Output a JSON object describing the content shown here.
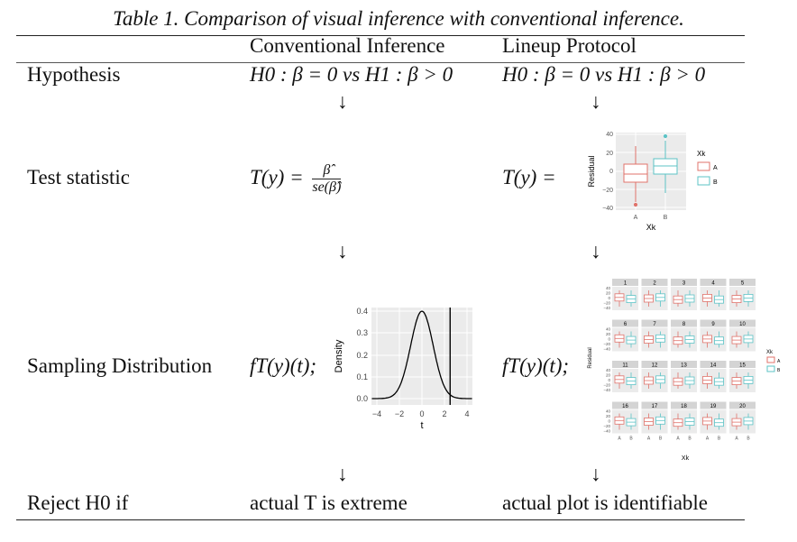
{
  "caption": "Table 1. Comparison of visual inference with conventional inference.",
  "columns": {
    "conventional": "Conventional Inference",
    "lineup": "Lineup Protocol"
  },
  "rows": {
    "hypothesis": {
      "label": "Hypothesis",
      "conventional": "H0 : β = 0 vs H1 : β > 0",
      "lineup": "H0 : β = 0 vs H1 : β > 0"
    },
    "test_statistic": {
      "label": "Test statistic",
      "conventional_lhs": "T(y) =",
      "conventional_num": "β̂",
      "conventional_den": "se(β̂)",
      "lineup_lhs": "T(y) ="
    },
    "sampling": {
      "label": "Sampling Distribution",
      "conventional": "fT(y)(t);",
      "lineup": "fT(y)(t);"
    },
    "reject": {
      "label": "Reject H0 if",
      "conventional": "actual T is extreme",
      "lineup": "actual plot is identifiable"
    }
  },
  "arrow": "↓",
  "boxplot": {
    "ylabel": "Residual",
    "xlabel": "Xk",
    "legend_title": "Xk",
    "ticks": [
      "40",
      "20",
      "0",
      "−20",
      "−40"
    ],
    "categories": [
      "A",
      "B"
    ],
    "colors": {
      "A": "#e0736b",
      "B": "#5cc3c6"
    }
  },
  "density": {
    "ylabel": "Density",
    "xlabel": "t",
    "yticks": [
      "0.0",
      "0.1",
      "0.2",
      "0.3",
      "0.4"
    ],
    "xticks": [
      "−4",
      "−2",
      "0",
      "2",
      "4"
    ],
    "observed_t": 2.5
  },
  "lineup_grid": {
    "panels": [
      "1",
      "2",
      "3",
      "4",
      "5",
      "6",
      "7",
      "8",
      "9",
      "10",
      "11",
      "12",
      "13",
      "14",
      "15",
      "16",
      "17",
      "18",
      "19",
      "20"
    ],
    "ylabel": "Residual",
    "xlabel": "Xk",
    "ticks": [
      "40",
      "20",
      "0",
      "−20",
      "−40"
    ],
    "categories": [
      "A",
      "B"
    ],
    "legend_title": "Xk"
  }
}
